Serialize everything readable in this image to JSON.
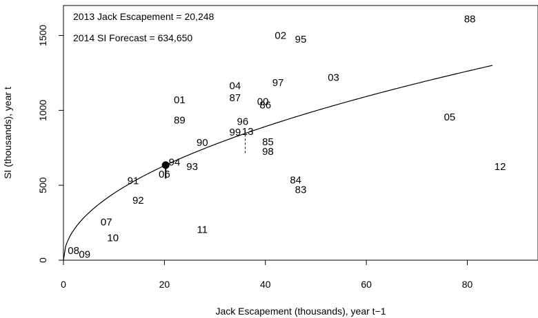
{
  "chart_data": {
    "type": "scatter",
    "xlabel": "Jack Escapement (thousands), year t−1",
    "ylabel": "SI (thousands), year t",
    "xlim": [
      0,
      94
    ],
    "ylim": [
      0,
      1700
    ],
    "x_ticks": [
      0,
      20,
      40,
      60,
      80
    ],
    "y_ticks": [
      0,
      500,
      1000,
      1500
    ],
    "annotations": [
      "2013 Jack Escapement = 20,248",
      "2014 SI Forecast = 634,650"
    ],
    "points": [
      {
        "label": "88",
        "x": 80.5,
        "y": 1610
      },
      {
        "label": "02",
        "x": 43.0,
        "y": 1500
      },
      {
        "label": "95",
        "x": 47.0,
        "y": 1475
      },
      {
        "label": "03",
        "x": 53.5,
        "y": 1220
      },
      {
        "label": "97",
        "x": 42.5,
        "y": 1185
      },
      {
        "label": "04",
        "x": 34.0,
        "y": 1165
      },
      {
        "label": "87",
        "x": 34.0,
        "y": 1085
      },
      {
        "label": "01",
        "x": 23.0,
        "y": 1070
      },
      {
        "label": "00",
        "x": 39.5,
        "y": 1060
      },
      {
        "label": "86",
        "x": 40.0,
        "y": 1035
      },
      {
        "label": "05",
        "x": 76.5,
        "y": 955
      },
      {
        "label": "89",
        "x": 23.0,
        "y": 935
      },
      {
        "label": "96",
        "x": 35.5,
        "y": 925
      },
      {
        "label": "99",
        "x": 34.0,
        "y": 855
      },
      {
        "label": "13",
        "x": 36.5,
        "y": 860
      },
      {
        "label": "90",
        "x": 27.5,
        "y": 785
      },
      {
        "label": "85",
        "x": 40.5,
        "y": 790
      },
      {
        "label": "98",
        "x": 40.5,
        "y": 725
      },
      {
        "label": "94",
        "x": 22.0,
        "y": 655
      },
      {
        "label": "93",
        "x": 25.5,
        "y": 625
      },
      {
        "label": "06",
        "x": 20.0,
        "y": 575
      },
      {
        "label": "12",
        "x": 86.5,
        "y": 625
      },
      {
        "label": "91",
        "x": 13.8,
        "y": 530
      },
      {
        "label": "84",
        "x": 46.0,
        "y": 535
      },
      {
        "label": "83",
        "x": 47.0,
        "y": 470
      },
      {
        "label": "92",
        "x": 14.8,
        "y": 400
      },
      {
        "label": "07",
        "x": 8.5,
        "y": 255
      },
      {
        "label": "11",
        "x": 27.5,
        "y": 205
      },
      {
        "label": "10",
        "x": 9.8,
        "y": 150
      },
      {
        "label": "08",
        "x": 2.0,
        "y": 65
      },
      {
        "label": "09",
        "x": 4.2,
        "y": 40
      }
    ],
    "forecast_point": {
      "x": 20.248,
      "y": 634.65
    },
    "fit_curve": {
      "a": 141.05,
      "b": 0.5,
      "x_max": 85
    },
    "residual_line": {
      "x": 36.0,
      "y_from": 715,
      "y_to": 880
    }
  }
}
